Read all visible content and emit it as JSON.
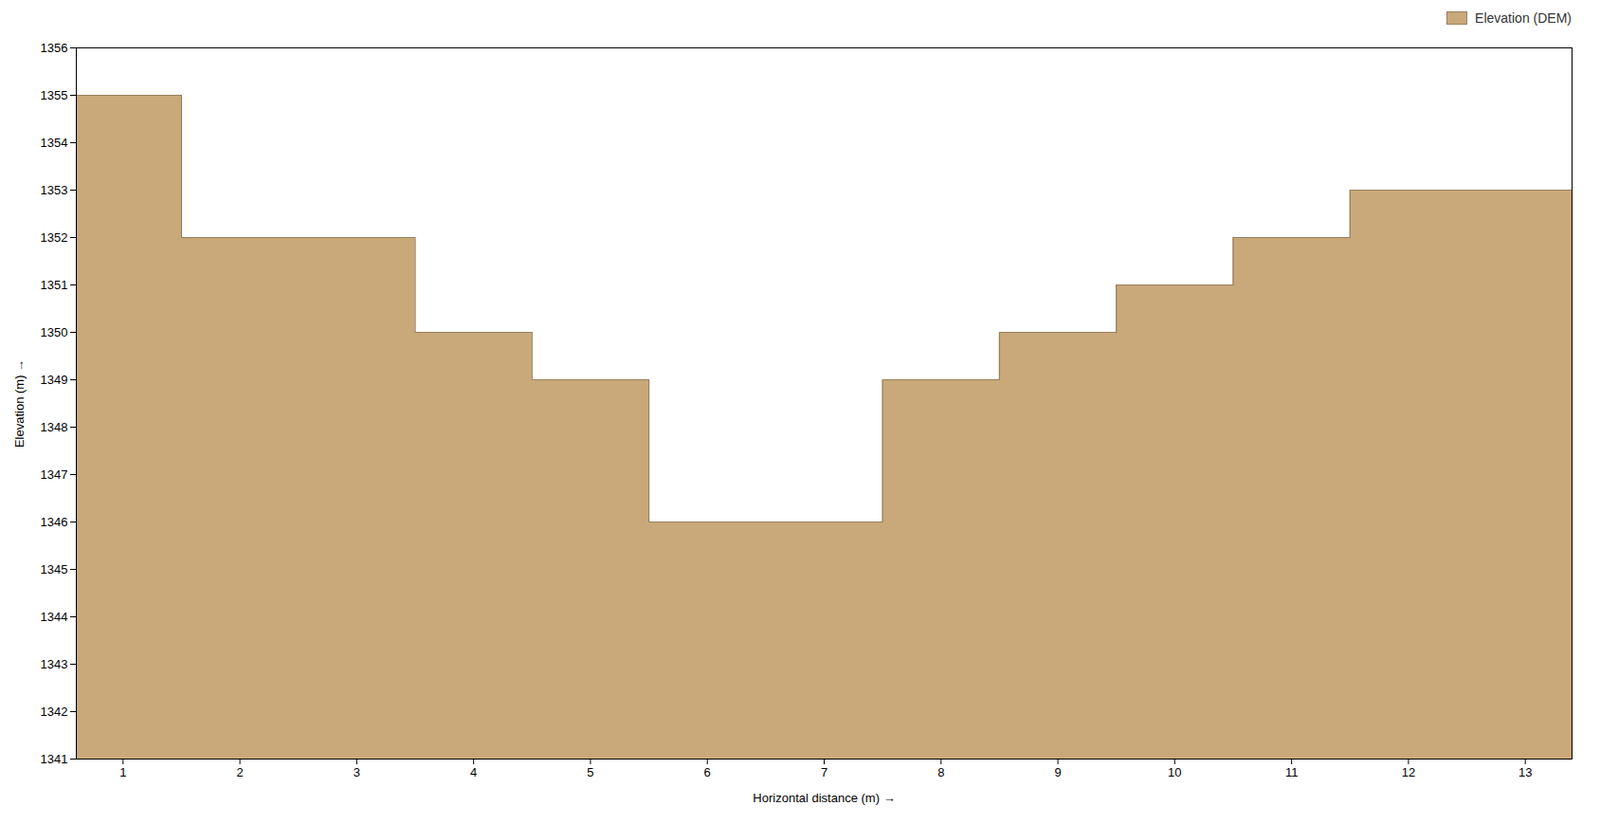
{
  "chart_data": {
    "type": "area",
    "x": [
      0.6,
      1.5,
      1.5,
      3.5,
      3.5,
      4.5,
      4.5,
      5.5,
      5.5,
      7.5,
      7.5,
      8.5,
      8.5,
      9.5,
      9.5,
      10.5,
      10.5,
      11.5,
      11.5,
      13.4
    ],
    "series": [
      {
        "name": "Elevation (DEM)",
        "color": "#C9A97A",
        "values": [
          1355,
          1355,
          1352,
          1352,
          1350,
          1350,
          1349,
          1349,
          1346,
          1346,
          1349,
          1349,
          1350,
          1350,
          1351,
          1351,
          1352,
          1352,
          1353,
          1353
        ]
      }
    ],
    "baseline": 1341,
    "xlim": [
      0.6,
      13.4
    ],
    "ylim": [
      1341,
      1356
    ],
    "xticks": [
      1,
      2,
      3,
      4,
      5,
      6,
      7,
      8,
      9,
      10,
      11,
      12,
      13
    ],
    "yticks": [
      1341,
      1342,
      1343,
      1344,
      1345,
      1346,
      1347,
      1348,
      1349,
      1350,
      1351,
      1352,
      1353,
      1354,
      1355,
      1356
    ],
    "xlabel": "Horizontal distance (m)",
    "ylabel": "Elevation (m)",
    "legend": "upper right",
    "grid": false
  }
}
